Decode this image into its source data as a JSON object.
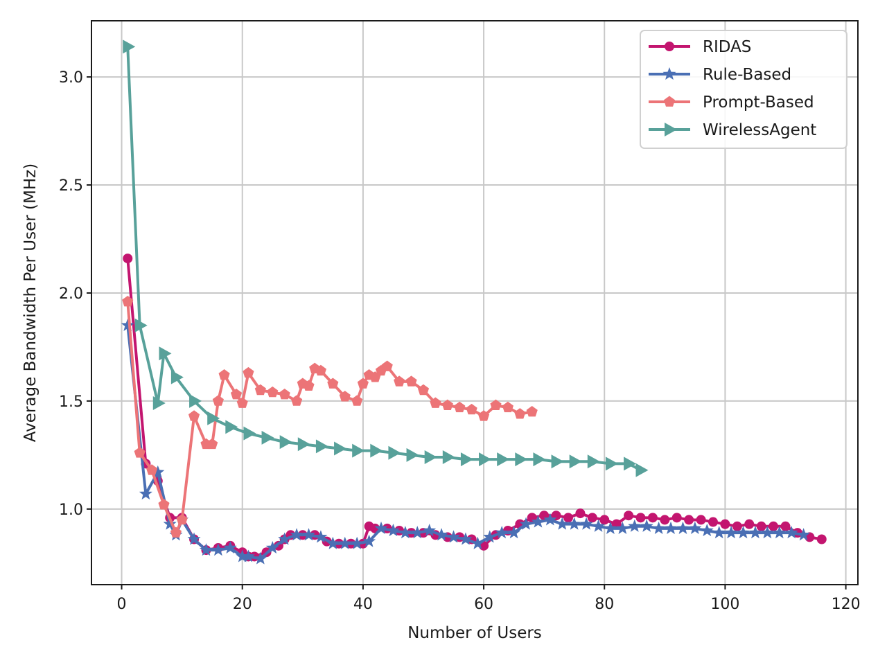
{
  "chart_data": {
    "type": "line",
    "title": "",
    "xlabel": "Number of Users",
    "ylabel": "Average Bandwidth Per User (MHz)",
    "xlim": [
      -5,
      122
    ],
    "ylim": [
      0.65,
      3.26
    ],
    "xticks": [
      0,
      20,
      40,
      60,
      80,
      100,
      120
    ],
    "yticks": [
      1.0,
      1.5,
      2.0,
      2.5,
      3.0
    ],
    "xtick_labels": [
      "0",
      "20",
      "40",
      "60",
      "80",
      "100",
      "120"
    ],
    "ytick_labels": [
      "1.0",
      "1.5",
      "2.0",
      "2.5",
      "3.0"
    ],
    "grid": true,
    "legend_position": "top-right",
    "series": [
      {
        "name": "RIDAS",
        "color": "#c3156f",
        "marker": "circle",
        "x": [
          1,
          4,
          6,
          8,
          10,
          12,
          14,
          16,
          18,
          20,
          21,
          22,
          24,
          26,
          27,
          28,
          30,
          32,
          34,
          36,
          38,
          40,
          41,
          42,
          44,
          46,
          48,
          50,
          52,
          54,
          56,
          58,
          60,
          62,
          64,
          66,
          68,
          70,
          72,
          74,
          76,
          78,
          80,
          82,
          84,
          86,
          88,
          90,
          92,
          94,
          96,
          98,
          100,
          102,
          104,
          106,
          108,
          110,
          112,
          114,
          116
        ],
        "y": [
          2.16,
          1.21,
          1.13,
          0.96,
          0.96,
          0.86,
          0.81,
          0.82,
          0.83,
          0.8,
          0.78,
          0.78,
          0.8,
          0.83,
          0.86,
          0.88,
          0.88,
          0.88,
          0.85,
          0.84,
          0.84,
          0.84,
          0.92,
          0.91,
          0.91,
          0.9,
          0.89,
          0.89,
          0.88,
          0.87,
          0.87,
          0.86,
          0.83,
          0.88,
          0.9,
          0.93,
          0.96,
          0.97,
          0.97,
          0.96,
          0.98,
          0.96,
          0.95,
          0.93,
          0.97,
          0.96,
          0.96,
          0.95,
          0.96,
          0.95,
          0.95,
          0.94,
          0.93,
          0.92,
          0.93,
          0.92,
          0.92,
          0.92,
          0.89,
          0.87,
          0.86
        ]
      },
      {
        "name": "Rule-Based",
        "color": "#4a6fb4",
        "marker": "star",
        "x": [
          1,
          4,
          6,
          8,
          9,
          10,
          12,
          14,
          16,
          18,
          20,
          21,
          23,
          25,
          27,
          29,
          31,
          33,
          35,
          37,
          39,
          41,
          43,
          45,
          47,
          49,
          51,
          53,
          55,
          57,
          59,
          61,
          63,
          65,
          67,
          69,
          71,
          73,
          75,
          77,
          79,
          81,
          83,
          85,
          87,
          89,
          91,
          93,
          95,
          97,
          99,
          101,
          103,
          105,
          107,
          109,
          111,
          113
        ],
        "y": [
          1.85,
          1.07,
          1.17,
          0.93,
          0.88,
          0.95,
          0.86,
          0.81,
          0.81,
          0.82,
          0.78,
          0.78,
          0.77,
          0.82,
          0.86,
          0.88,
          0.88,
          0.87,
          0.84,
          0.84,
          0.84,
          0.85,
          0.91,
          0.9,
          0.89,
          0.89,
          0.9,
          0.88,
          0.87,
          0.86,
          0.84,
          0.87,
          0.89,
          0.89,
          0.93,
          0.94,
          0.95,
          0.93,
          0.93,
          0.93,
          0.92,
          0.91,
          0.91,
          0.92,
          0.92,
          0.91,
          0.91,
          0.91,
          0.91,
          0.9,
          0.89,
          0.89,
          0.89,
          0.89,
          0.89,
          0.89,
          0.89,
          0.88
        ]
      },
      {
        "name": "Prompt-Based",
        "color": "#ec7477",
        "marker": "pentagon",
        "x": [
          1,
          3,
          5,
          7,
          9,
          10,
          12,
          14,
          15,
          16,
          17,
          19,
          20,
          21,
          23,
          25,
          27,
          29,
          30,
          31,
          32,
          33,
          35,
          37,
          39,
          40,
          41,
          42,
          43,
          44,
          46,
          48,
          50,
          52,
          54,
          56,
          58,
          60,
          62,
          64,
          66,
          68
        ],
        "y": [
          1.96,
          1.26,
          1.18,
          1.02,
          0.89,
          0.95,
          1.43,
          1.3,
          1.3,
          1.5,
          1.62,
          1.53,
          1.49,
          1.63,
          1.55,
          1.54,
          1.53,
          1.5,
          1.58,
          1.57,
          1.65,
          1.64,
          1.58,
          1.52,
          1.5,
          1.58,
          1.62,
          1.61,
          1.64,
          1.66,
          1.59,
          1.59,
          1.55,
          1.49,
          1.48,
          1.47,
          1.46,
          1.43,
          1.48,
          1.47,
          1.44,
          1.45
        ]
      },
      {
        "name": "WirelessAgent",
        "color": "#58a19a",
        "marker": "triangle-right",
        "x": [
          1,
          3,
          6,
          7,
          9,
          12,
          15,
          18,
          21,
          24,
          27,
          30,
          33,
          36,
          39,
          42,
          45,
          48,
          51,
          54,
          57,
          60,
          63,
          66,
          69,
          72,
          75,
          78,
          81,
          84,
          86
        ],
        "y": [
          3.14,
          1.85,
          1.49,
          1.72,
          1.61,
          1.5,
          1.42,
          1.38,
          1.35,
          1.33,
          1.31,
          1.3,
          1.29,
          1.28,
          1.27,
          1.27,
          1.26,
          1.25,
          1.24,
          1.24,
          1.23,
          1.23,
          1.23,
          1.23,
          1.23,
          1.22,
          1.22,
          1.22,
          1.21,
          1.21,
          1.18
        ]
      }
    ]
  }
}
